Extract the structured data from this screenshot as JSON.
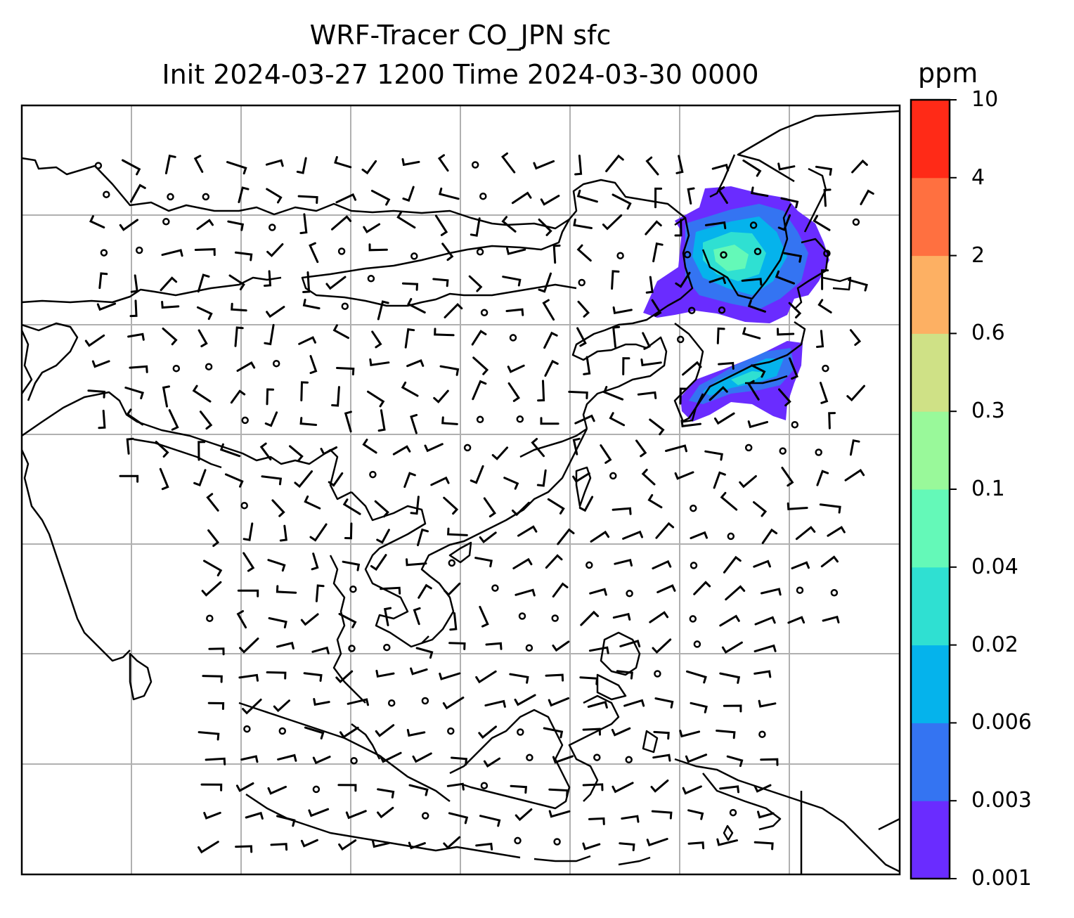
{
  "title": {
    "line1": "WRF-Tracer CO_JPN sfc",
    "line2": "Init 2024-03-27 1200 Time 2024-03-30 0000"
  },
  "colorbar": {
    "unit": "ppm",
    "labels": [
      "10",
      "4",
      "2",
      "0.6",
      "0.3",
      "0.1",
      "0.04",
      "0.02",
      "0.006",
      "0.003",
      "0.001"
    ],
    "colors": [
      "#6a2cff",
      "#3474f2",
      "#05b3ec",
      "#2fe0d2",
      "#64f9b8",
      "#99f99a",
      "#cfe186",
      "#fdb063",
      "#ff7040",
      "#ff2a17"
    ]
  },
  "map": {
    "gridlines": true,
    "overlay": "wind barbs",
    "tracer_plumes": [
      "northeast China / Korea",
      "Japan"
    ]
  }
}
